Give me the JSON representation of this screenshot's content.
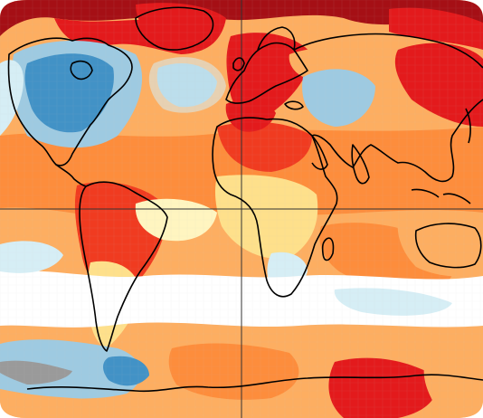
{
  "map": {
    "projection": "robinson",
    "colors": {
      "dark_red": "#a50f15",
      "red": "#e31a1c",
      "red_orange": "#f03b20",
      "orange": "#fd8d3c",
      "light_orange": "#fdae61",
      "yellow": "#fee08b",
      "pale_yellow": "#fff5c0",
      "white": "#ffffff",
      "pale_blue": "#d6eef5",
      "light_blue": "#9ecae1",
      "blue": "#4292c6",
      "missing": "#9a9a9a",
      "coastline": "#000000",
      "grid": "#c8c8c8"
    },
    "anomaly_regions": [
      {
        "name": "north-america-cold",
        "level": "blue"
      },
      {
        "name": "north-atlantic-cold",
        "level": "light_blue"
      },
      {
        "name": "siberia-cold",
        "level": "light_blue"
      },
      {
        "name": "europe-warm",
        "level": "red"
      },
      {
        "name": "east-asia-warm",
        "level": "red"
      },
      {
        "name": "arctic-warm",
        "level": "dark_red"
      },
      {
        "name": "antarctic-warm",
        "level": "red"
      },
      {
        "name": "southern-ocean-cold",
        "level": "light_blue"
      }
    ]
  }
}
